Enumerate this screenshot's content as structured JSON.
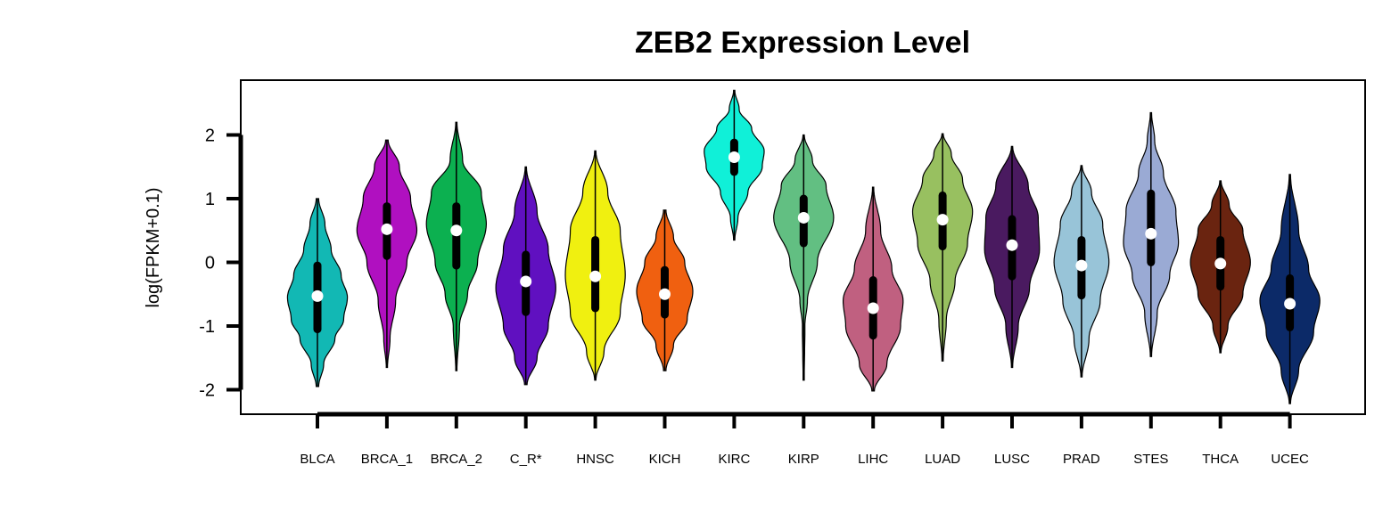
{
  "chart_data": {
    "type": "violin",
    "title": "ZEB2 Expression Level",
    "xlabel": "",
    "ylabel": "log(FPKM+0.1)",
    "ylim": [
      -2.4,
      2.9
    ],
    "yticks": [
      -2,
      -1,
      0,
      1,
      2
    ],
    "legend": "none",
    "grid": false,
    "categories": [
      "BLCA",
      "BRCA_1",
      "BRCA_2",
      "C_R*",
      "HNSC",
      "KICH",
      "KIRC",
      "KIRP",
      "LIHC",
      "LUAD",
      "LUSC",
      "PRAD",
      "STES",
      "THCA",
      "UCEC"
    ],
    "series": [
      {
        "category": "BLCA",
        "color": "#12b8b4",
        "min": -1.95,
        "max": 1.0,
        "q1": -1.05,
        "median": -0.53,
        "q3": -0.05,
        "whisker": [
          -1.95,
          1.0
        ],
        "profile": [
          [
            -1.95,
            0.02
          ],
          [
            -1.6,
            0.1
          ],
          [
            -1.2,
            0.28
          ],
          [
            -0.9,
            0.42
          ],
          [
            -0.55,
            0.48
          ],
          [
            -0.2,
            0.38
          ],
          [
            0.2,
            0.22
          ],
          [
            0.6,
            0.12
          ],
          [
            1.0,
            0.02
          ]
        ]
      },
      {
        "category": "BRCA_1",
        "color": "#b010c0",
        "min": -1.65,
        "max": 1.92,
        "q1": 0.1,
        "median": 0.52,
        "q3": 0.88,
        "whisker": [
          -1.65,
          1.92
        ],
        "profile": [
          [
            -1.65,
            0.01
          ],
          [
            -1.2,
            0.05
          ],
          [
            -0.6,
            0.14
          ],
          [
            0.0,
            0.32
          ],
          [
            0.5,
            0.48
          ],
          [
            1.0,
            0.38
          ],
          [
            1.5,
            0.2
          ],
          [
            1.92,
            0.02
          ]
        ]
      },
      {
        "category": "BRCA_2",
        "color": "#0cb050",
        "min": -1.7,
        "max": 2.2,
        "q1": -0.05,
        "median": 0.5,
        "q3": 0.88,
        "whisker": [
          -1.7,
          2.2
        ],
        "profile": [
          [
            -1.7,
            0.01
          ],
          [
            -1.0,
            0.05
          ],
          [
            -0.5,
            0.18
          ],
          [
            0.0,
            0.34
          ],
          [
            0.6,
            0.48
          ],
          [
            1.1,
            0.4
          ],
          [
            1.6,
            0.1
          ],
          [
            2.2,
            0.01
          ]
        ]
      },
      {
        "category": "C_R*",
        "color": "#6010c0",
        "min": -1.92,
        "max": 1.5,
        "q1": -0.78,
        "median": -0.3,
        "q3": 0.12,
        "whisker": [
          -1.92,
          1.5
        ],
        "profile": [
          [
            -1.92,
            0.02
          ],
          [
            -1.5,
            0.18
          ],
          [
            -1.0,
            0.36
          ],
          [
            -0.4,
            0.48
          ],
          [
            0.2,
            0.36
          ],
          [
            0.8,
            0.18
          ],
          [
            1.5,
            0.01
          ]
        ]
      },
      {
        "category": "HNSC",
        "color": "#f0f010",
        "min": -1.85,
        "max": 1.75,
        "q1": -0.72,
        "median": -0.22,
        "q3": 0.35,
        "whisker": [
          -1.85,
          1.75
        ],
        "profile": [
          [
            -1.85,
            0.01
          ],
          [
            -1.4,
            0.14
          ],
          [
            -0.8,
            0.4
          ],
          [
            -0.2,
            0.48
          ],
          [
            0.5,
            0.4
          ],
          [
            1.1,
            0.2
          ],
          [
            1.75,
            0.01
          ]
        ]
      },
      {
        "category": "KICH",
        "color": "#f06010",
        "min": -1.7,
        "max": 0.82,
        "q1": -0.82,
        "median": -0.5,
        "q3": -0.12,
        "whisker": [
          -1.7,
          0.82
        ],
        "profile": [
          [
            -1.7,
            0.02
          ],
          [
            -1.3,
            0.14
          ],
          [
            -0.9,
            0.36
          ],
          [
            -0.45,
            0.45
          ],
          [
            0.0,
            0.32
          ],
          [
            0.4,
            0.14
          ],
          [
            0.82,
            0.02
          ]
        ]
      },
      {
        "category": "KIRC",
        "color": "#10f0d8",
        "min": 0.35,
        "max": 2.7,
        "q1": 1.42,
        "median": 1.65,
        "q3": 1.88,
        "whisker": [
          0.35,
          2.7
        ],
        "profile": [
          [
            0.35,
            0.01
          ],
          [
            0.7,
            0.06
          ],
          [
            1.1,
            0.22
          ],
          [
            1.5,
            0.45
          ],
          [
            1.75,
            0.48
          ],
          [
            2.1,
            0.28
          ],
          [
            2.4,
            0.08
          ],
          [
            2.7,
            0.01
          ]
        ]
      },
      {
        "category": "KIRP",
        "color": "#62bf82",
        "min": -1.85,
        "max": 2.0,
        "q1": 0.3,
        "median": 0.7,
        "q3": 1.0,
        "whisker": [
          -1.85,
          2.0
        ],
        "profile": [
          [
            -1.85,
            0.01
          ],
          [
            -1.0,
            0.02
          ],
          [
            -0.6,
            0.06
          ],
          [
            0.0,
            0.22
          ],
          [
            0.7,
            0.48
          ],
          [
            1.2,
            0.36
          ],
          [
            1.6,
            0.14
          ],
          [
            2.0,
            0.01
          ]
        ]
      },
      {
        "category": "LIHC",
        "color": "#c06080",
        "min": -2.02,
        "max": 1.18,
        "q1": -1.15,
        "median": -0.72,
        "q3": -0.28,
        "whisker": [
          -2.02,
          1.18
        ],
        "profile": [
          [
            -2.02,
            0.02
          ],
          [
            -1.6,
            0.22
          ],
          [
            -1.0,
            0.44
          ],
          [
            -0.6,
            0.48
          ],
          [
            -0.1,
            0.3
          ],
          [
            0.5,
            0.12
          ],
          [
            1.18,
            0.01
          ]
        ]
      },
      {
        "category": "LUAD",
        "color": "#98c060",
        "min": -1.55,
        "max": 2.02,
        "q1": 0.25,
        "median": 0.67,
        "q3": 1.05,
        "whisker": [
          -1.55,
          2.02
        ],
        "profile": [
          [
            -1.55,
            0.01
          ],
          [
            -0.9,
            0.06
          ],
          [
            -0.3,
            0.2
          ],
          [
            0.3,
            0.4
          ],
          [
            0.8,
            0.48
          ],
          [
            1.3,
            0.32
          ],
          [
            1.7,
            0.14
          ],
          [
            2.02,
            0.01
          ]
        ]
      },
      {
        "category": "LUSC",
        "color": "#4a1a60",
        "min": -1.65,
        "max": 1.82,
        "q1": -0.22,
        "median": 0.27,
        "q3": 0.68,
        "whisker": [
          -1.65,
          1.82
        ],
        "profile": [
          [
            -1.65,
            0.01
          ],
          [
            -1.0,
            0.1
          ],
          [
            -0.4,
            0.28
          ],
          [
            0.2,
            0.44
          ],
          [
            0.7,
            0.42
          ],
          [
            1.2,
            0.26
          ],
          [
            1.82,
            0.01
          ]
        ]
      },
      {
        "category": "PRAD",
        "color": "#98c4d8",
        "min": -1.8,
        "max": 1.52,
        "q1": -0.52,
        "median": -0.05,
        "q3": 0.35,
        "whisker": [
          -1.8,
          1.52
        ],
        "profile": [
          [
            -1.8,
            0.01
          ],
          [
            -1.2,
            0.12
          ],
          [
            -0.6,
            0.3
          ],
          [
            0.0,
            0.44
          ],
          [
            0.6,
            0.34
          ],
          [
            1.1,
            0.16
          ],
          [
            1.52,
            0.01
          ]
        ]
      },
      {
        "category": "STES",
        "color": "#9aaad4",
        "min": -1.48,
        "max": 2.35,
        "q1": 0.0,
        "median": 0.45,
        "q3": 1.08,
        "whisker": [
          -1.48,
          2.35
        ],
        "profile": [
          [
            -1.48,
            0.01
          ],
          [
            -0.8,
            0.1
          ],
          [
            -0.2,
            0.3
          ],
          [
            0.3,
            0.44
          ],
          [
            0.8,
            0.4
          ],
          [
            1.4,
            0.2
          ],
          [
            1.9,
            0.06
          ],
          [
            2.35,
            0.01
          ]
        ]
      },
      {
        "category": "THCA",
        "color": "#6a2410",
        "min": -1.42,
        "max": 1.28,
        "q1": -0.38,
        "median": -0.02,
        "q3": 0.35,
        "whisker": [
          -1.42,
          1.28
        ],
        "profile": [
          [
            -1.42,
            0.01
          ],
          [
            -1.0,
            0.12
          ],
          [
            -0.5,
            0.36
          ],
          [
            0.0,
            0.48
          ],
          [
            0.5,
            0.36
          ],
          [
            0.9,
            0.14
          ],
          [
            1.28,
            0.01
          ]
        ]
      },
      {
        "category": "UCEC",
        "color": "#0c2a68",
        "min": -2.22,
        "max": 1.38,
        "q1": -1.02,
        "median": -0.65,
        "q3": -0.25,
        "whisker": [
          -2.22,
          1.38
        ],
        "profile": [
          [
            -2.22,
            0.01
          ],
          [
            -1.7,
            0.14
          ],
          [
            -1.1,
            0.38
          ],
          [
            -0.6,
            0.48
          ],
          [
            -0.1,
            0.3
          ],
          [
            0.5,
            0.14
          ],
          [
            1.38,
            0.01
          ]
        ]
      }
    ]
  }
}
